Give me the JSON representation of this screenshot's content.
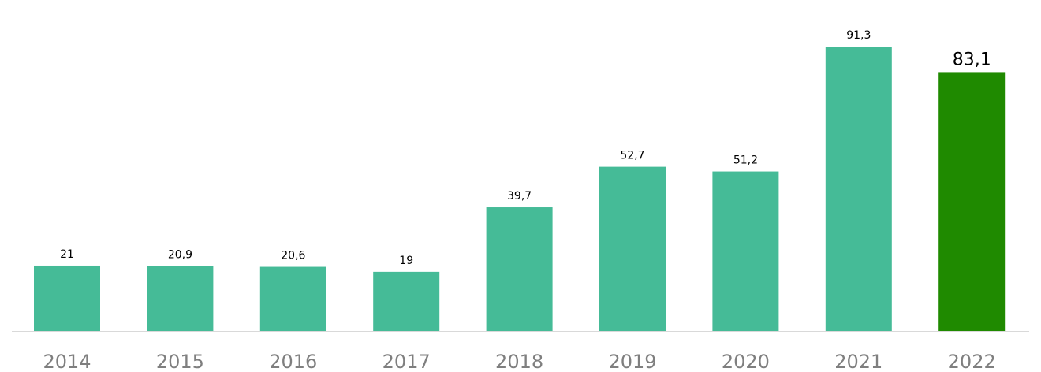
{
  "chart_data": {
    "type": "bar",
    "title": "",
    "xlabel": "",
    "ylabel": "",
    "categories": [
      "2014",
      "2015",
      "2016",
      "2017",
      "2018",
      "2019",
      "2020",
      "2021",
      "2022"
    ],
    "values": [
      21,
      20.9,
      20.6,
      19,
      39.7,
      52.7,
      51.2,
      91.3,
      83.1
    ],
    "value_labels": [
      "21",
      "20,9",
      "20,6",
      "19",
      "39,7",
      "52,7",
      "51,2",
      "91,3",
      "83,1"
    ],
    "ylim": [
      0,
      91.3
    ],
    "grid": false,
    "legend": "none",
    "highlight_index": 8,
    "colors": {
      "bar": "#45bb97",
      "highlight": "#1f8a00",
      "baseline": "#d9d9d9",
      "tick_text": "#7f7f7f",
      "value_text": "#000000"
    }
  }
}
